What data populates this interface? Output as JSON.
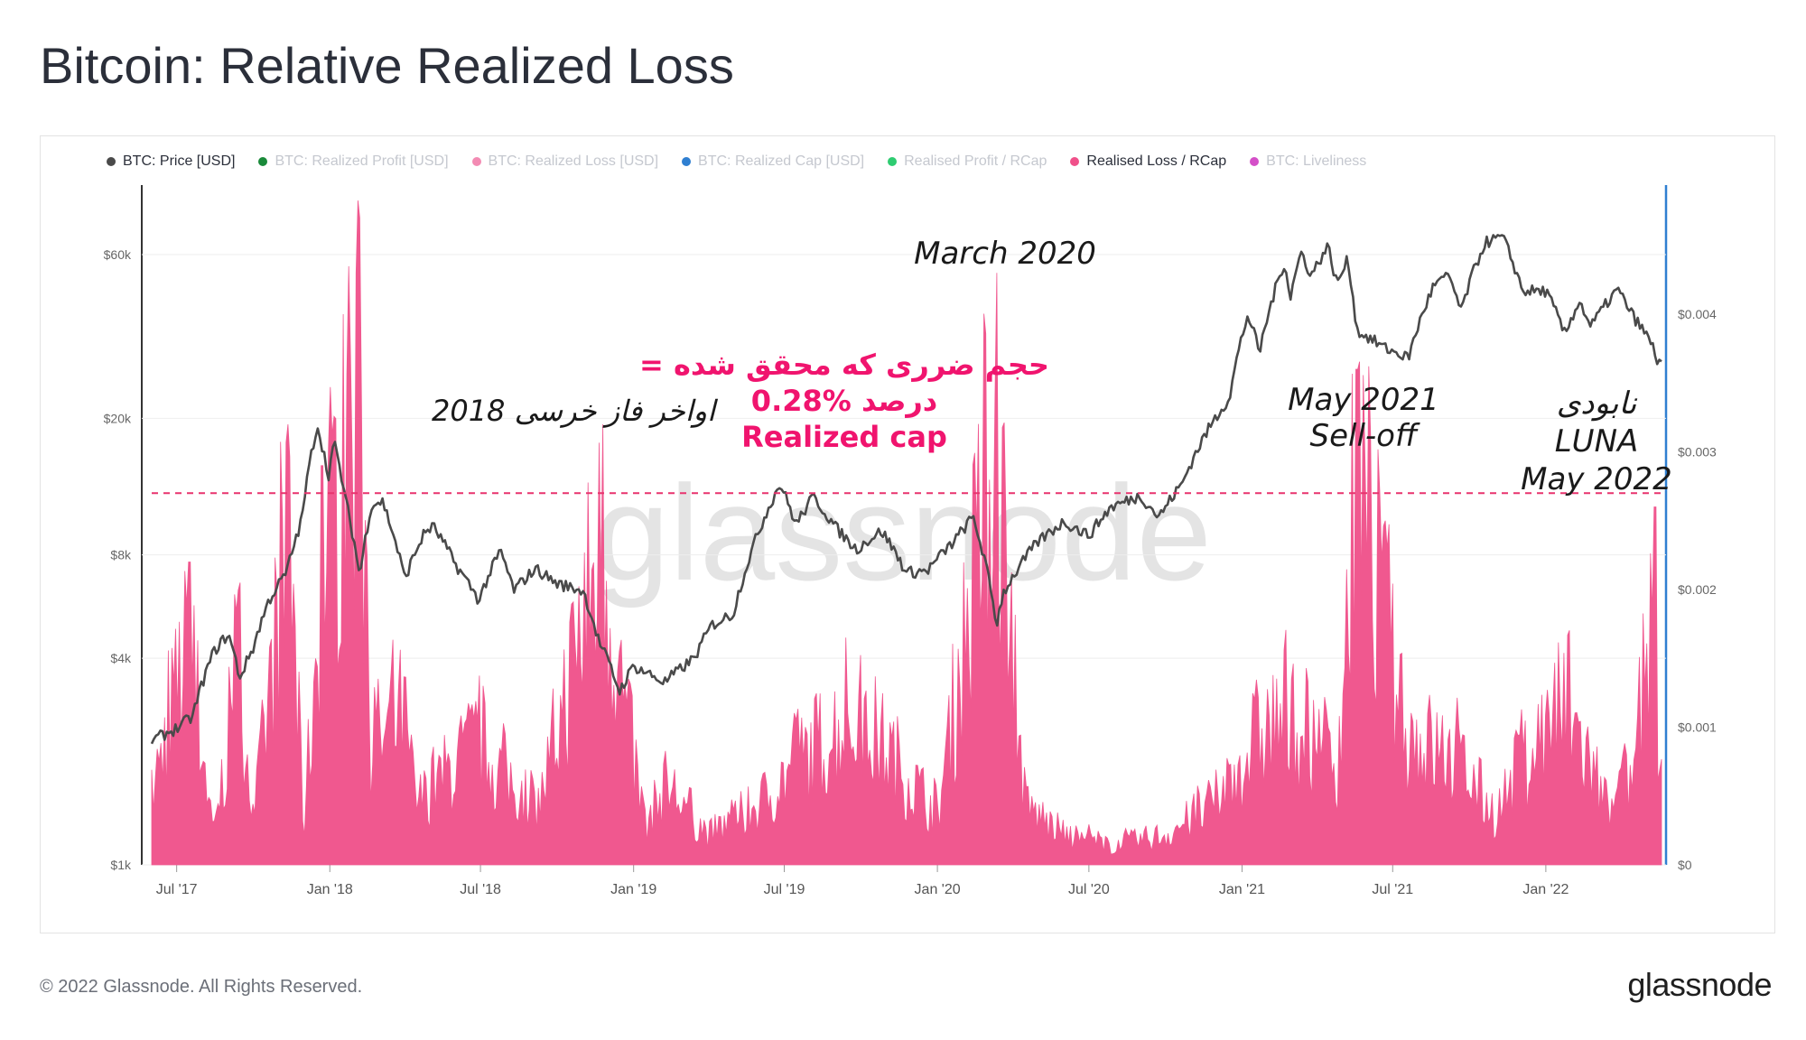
{
  "page": {
    "title": "Bitcoin: Relative Realized Loss",
    "copyright": "© 2022 Glassnode. All Rights Reserved.",
    "logo": "glassnode"
  },
  "colors": {
    "price": "#4a4a4a",
    "loss": "#f0508a",
    "threshold": "#e8336e",
    "annotation_red": "#f0146e",
    "right_axis": "#2f7fd1",
    "watermark": "#d9d9d9"
  },
  "legend": [
    {
      "label": "BTC: Price [USD]",
      "color": "#4a4a4a",
      "active": true
    },
    {
      "label": "BTC: Realized Profit [USD]",
      "color": "#1a8a3a",
      "active": false
    },
    {
      "label": "BTC: Realized Loss [USD]",
      "color": "#f38bb3",
      "active": false
    },
    {
      "label": "BTC: Realized Cap [USD]",
      "color": "#2f7fd1",
      "active": false
    },
    {
      "label": "Realised Profit / RCap",
      "color": "#2ecc71",
      "active": false
    },
    {
      "label": "Realised Loss / RCap",
      "color": "#f0508a",
      "active": true
    },
    {
      "label": "BTC: Liveliness",
      "color": "#d44fc8",
      "active": false
    }
  ],
  "chart_data": {
    "type": "area",
    "watermark": "glassnode",
    "x_ticks": [
      "Jul '17",
      "Jan '18",
      "Jul '18",
      "Jan '19",
      "Jul '19",
      "Jan '20",
      "Jul '20",
      "Jan '21",
      "Jul '21",
      "Jan '22"
    ],
    "x_range": [
      "2017-06",
      "2022-06"
    ],
    "y_left": {
      "scale": "log",
      "ticks": [
        "$1k",
        "$4k",
        "$8k",
        "$20k",
        "$60k"
      ],
      "tick_values": [
        1000,
        4000,
        8000,
        20000,
        60000
      ]
    },
    "y_right": {
      "ticks": [
        "$0",
        "$0.001",
        "$0.002",
        "$0.003",
        "$0.004"
      ],
      "tick_values": [
        0,
        0.001,
        0.002,
        0.003,
        0.004
      ],
      "range": [
        0,
        0.0045
      ]
    },
    "threshold": {
      "value": 0.0027
    },
    "series": [
      {
        "name": "BTC: Price [USD]",
        "axis": "left",
        "points": [
          [
            "2017-06-01",
            2300
          ],
          [
            "2017-07-01",
            2500
          ],
          [
            "2017-07-20",
            2700
          ],
          [
            "2017-08-15",
            4200
          ],
          [
            "2017-09-01",
            4700
          ],
          [
            "2017-09-15",
            3500
          ],
          [
            "2017-10-01",
            4300
          ],
          [
            "2017-10-20",
            5900
          ],
          [
            "2017-11-10",
            7100
          ],
          [
            "2017-11-28",
            10000
          ],
          [
            "2017-12-17",
            19200
          ],
          [
            "2017-12-30",
            13500
          ],
          [
            "2018-01-06",
            17000
          ],
          [
            "2018-01-20",
            11500
          ],
          [
            "2018-02-06",
            6900
          ],
          [
            "2018-02-20",
            11200
          ],
          [
            "2018-03-05",
            11500
          ],
          [
            "2018-04-01",
            6800
          ],
          [
            "2018-04-25",
            9300
          ],
          [
            "2018-05-05",
            9700
          ],
          [
            "2018-06-01",
            7500
          ],
          [
            "2018-06-29",
            5900
          ],
          [
            "2018-07-25",
            8200
          ],
          [
            "2018-08-10",
            6300
          ],
          [
            "2018-09-05",
            7300
          ],
          [
            "2018-10-01",
            6600
          ],
          [
            "2018-11-01",
            6300
          ],
          [
            "2018-11-20",
            4500
          ],
          [
            "2018-12-15",
            3200
          ],
          [
            "2019-01-01",
            3800
          ],
          [
            "2019-02-07",
            3400
          ],
          [
            "2019-03-15",
            4000
          ],
          [
            "2019-04-05",
            5000
          ],
          [
            "2019-05-01",
            5400
          ],
          [
            "2019-05-25",
            8500
          ],
          [
            "2019-06-26",
            12900
          ],
          [
            "2019-07-15",
            9800
          ],
          [
            "2019-08-05",
            11800
          ],
          [
            "2019-09-01",
            9600
          ],
          [
            "2019-09-25",
            8300
          ],
          [
            "2019-10-26",
            9400
          ],
          [
            "2019-11-25",
            7100
          ],
          [
            "2019-12-20",
            7200
          ],
          [
            "2020-01-20",
            8700
          ],
          [
            "2020-02-13",
            10300
          ],
          [
            "2020-03-12",
            5000
          ],
          [
            "2020-03-20",
            6200
          ],
          [
            "2020-04-30",
            8700
          ],
          [
            "2020-06-01",
            10000
          ],
          [
            "2020-07-01",
            9100
          ],
          [
            "2020-07-27",
            11000
          ],
          [
            "2020-09-01",
            11900
          ],
          [
            "2020-09-23",
            10300
          ],
          [
            "2020-10-21",
            12900
          ],
          [
            "2020-11-24",
            19000
          ],
          [
            "2020-12-17",
            23000
          ],
          [
            "2021-01-08",
            40000
          ],
          [
            "2021-01-22",
            31000
          ],
          [
            "2021-02-21",
            57000
          ],
          [
            "2021-02-28",
            45000
          ],
          [
            "2021-03-13",
            61000
          ],
          [
            "2021-03-25",
            52000
          ],
          [
            "2021-04-14",
            63500
          ],
          [
            "2021-04-25",
            49000
          ],
          [
            "2021-05-08",
            58000
          ],
          [
            "2021-05-19",
            36000
          ],
          [
            "2021-06-22",
            32000
          ],
          [
            "2021-07-20",
            30000
          ],
          [
            "2021-08-20",
            49000
          ],
          [
            "2021-09-07",
            52000
          ],
          [
            "2021-09-21",
            40800
          ],
          [
            "2021-10-20",
            65000
          ],
          [
            "2021-11-10",
            67500
          ],
          [
            "2021-12-04",
            47000
          ],
          [
            "2022-01-01",
            47000
          ],
          [
            "2022-01-24",
            35000
          ],
          [
            "2022-02-10",
            44000
          ],
          [
            "2022-02-24",
            37000
          ],
          [
            "2022-03-28",
            47500
          ],
          [
            "2022-04-15",
            40000
          ],
          [
            "2022-05-08",
            33000
          ],
          [
            "2022-05-15",
            29500
          ]
        ]
      },
      {
        "name": "Realised Loss / RCap",
        "axis": "right",
        "points": [
          [
            "2017-06-01",
            0.0007
          ],
          [
            "2017-07-16",
            0.0022
          ],
          [
            "2017-08-15",
            0.0003
          ],
          [
            "2017-09-15",
            0.00205
          ],
          [
            "2017-10-01",
            0.0004
          ],
          [
            "2017-11-12",
            0.0032
          ],
          [
            "2017-12-01",
            0.0004
          ],
          [
            "2017-12-22",
            0.0029
          ],
          [
            "2018-01-17",
            0.004
          ],
          [
            "2018-02-06",
            0.0047
          ],
          [
            "2018-02-20",
            0.0011
          ],
          [
            "2018-03-30",
            0.0015
          ],
          [
            "2018-04-15",
            0.0006
          ],
          [
            "2018-06-25",
            0.0012
          ],
          [
            "2018-08-10",
            0.0008
          ],
          [
            "2018-09-10",
            0.0006
          ],
          [
            "2018-11-25",
            0.0032
          ],
          [
            "2018-12-20",
            0.0016
          ],
          [
            "2019-01-15",
            0.0004
          ],
          [
            "2019-02-10",
            0.0008
          ],
          [
            "2019-04-01",
            0.0003
          ],
          [
            "2019-06-01",
            0.0006
          ],
          [
            "2019-07-15",
            0.001
          ],
          [
            "2019-09-25",
            0.0015
          ],
          [
            "2019-11-25",
            0.0009
          ],
          [
            "2020-01-01",
            0.0005
          ],
          [
            "2020-03-12",
            0.0043
          ],
          [
            "2020-04-15",
            0.0006
          ],
          [
            "2020-06-01",
            0.0003
          ],
          [
            "2020-08-01",
            0.0002
          ],
          [
            "2020-10-01",
            0.0003
          ],
          [
            "2020-11-28",
            0.0006
          ],
          [
            "2021-01-22",
            0.0013
          ],
          [
            "2021-02-28",
            0.0015
          ],
          [
            "2021-04-25",
            0.001
          ],
          [
            "2021-05-19",
            0.0036
          ],
          [
            "2021-06-22",
            0.0025
          ],
          [
            "2021-07-20",
            0.0013
          ],
          [
            "2021-09-21",
            0.001
          ],
          [
            "2021-11-01",
            0.0005
          ],
          [
            "2021-12-04",
            0.001
          ],
          [
            "2022-01-24",
            0.0016
          ],
          [
            "2022-02-24",
            0.001
          ],
          [
            "2022-03-20",
            0.0005
          ],
          [
            "2022-04-15",
            0.0009
          ],
          [
            "2022-05-12",
            0.0026
          ],
          [
            "2022-05-15",
            0.0007
          ]
        ]
      }
    ],
    "annotations": [
      {
        "lines": [
          "اواخر فاز خرسی 2018"
        ],
        "style": "dark-italic"
      },
      {
        "lines": [
          "= حجم ضرری که محقق شده",
          "0.28%  درصد",
          "Realized cap"
        ],
        "style": "red-bold"
      },
      {
        "lines": [
          "March 2020"
        ],
        "style": "dark-italic"
      },
      {
        "lines": [
          "May 2021",
          "Sell-off"
        ],
        "style": "dark-italic"
      },
      {
        "lines": [
          "نابودی",
          "LUNA",
          "May 2022"
        ],
        "style": "dark-italic"
      }
    ]
  }
}
